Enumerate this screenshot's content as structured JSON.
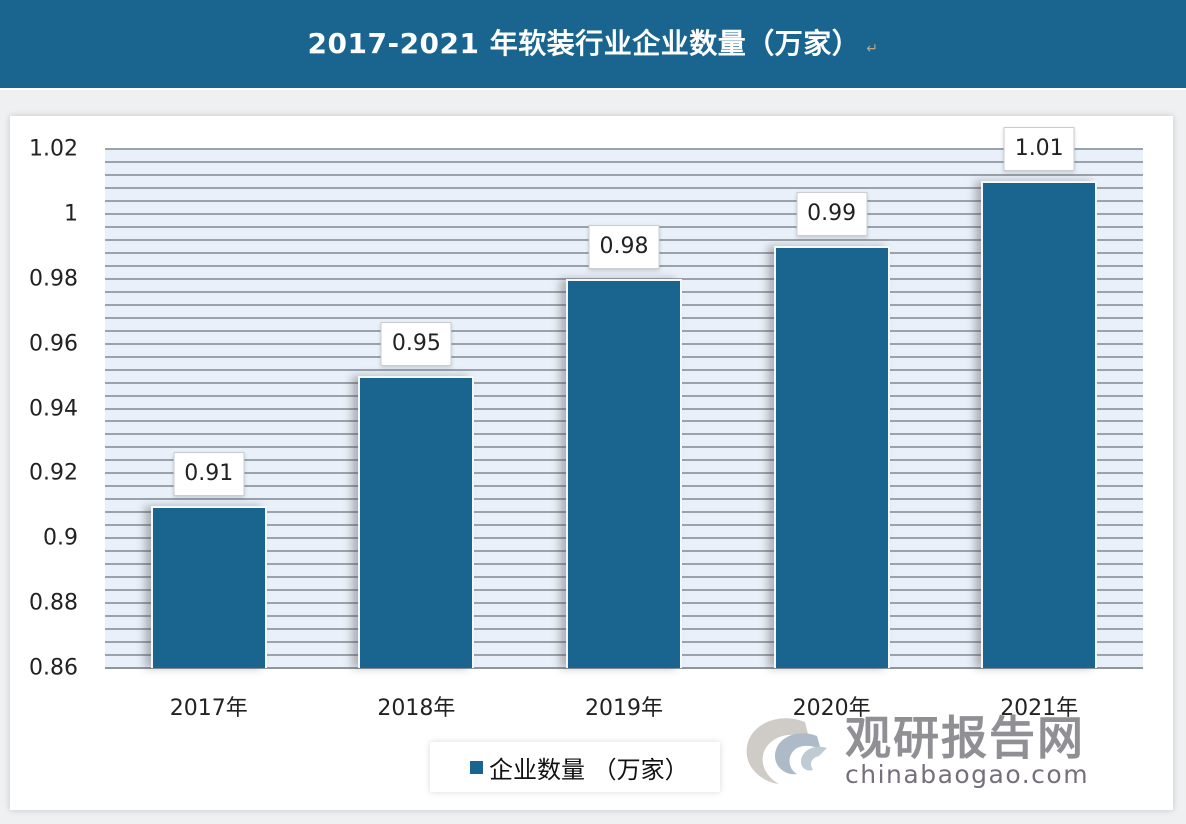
{
  "header": {
    "title": "2017-2021 年软装行业企业数量（万家）",
    "para_mark": "↵"
  },
  "colors": {
    "bar": "#1a6590",
    "header_bg": "#1a6590",
    "plot_bg": "#e9f0f9",
    "grid": "#9aa3ad"
  },
  "chart_data": {
    "type": "bar",
    "title": "2017-2021 年软装行业企业数量（万家）",
    "xlabel": "",
    "ylabel": "",
    "categories": [
      "2017年",
      "2018年",
      "2019年",
      "2020年",
      "2021年"
    ],
    "series": [
      {
        "name": "企业数量（万家）",
        "values": [
          0.91,
          0.95,
          0.98,
          0.99,
          1.01
        ]
      }
    ],
    "ylim": [
      0.86,
      1.02
    ],
    "yticks": [
      "1.02",
      "1",
      "0.98",
      "0.96",
      "0.94",
      "0.92",
      "0.9",
      "0.88",
      "0.86"
    ],
    "data_labels": [
      "0.91",
      "0.95",
      "0.98",
      "0.99",
      "1.01"
    ],
    "grid": true,
    "legend_position": "bottom"
  },
  "legend": {
    "label": "企业数量 （万家）"
  },
  "watermark": {
    "cn": "观研报告网",
    "en": "chinabaogao.com"
  }
}
